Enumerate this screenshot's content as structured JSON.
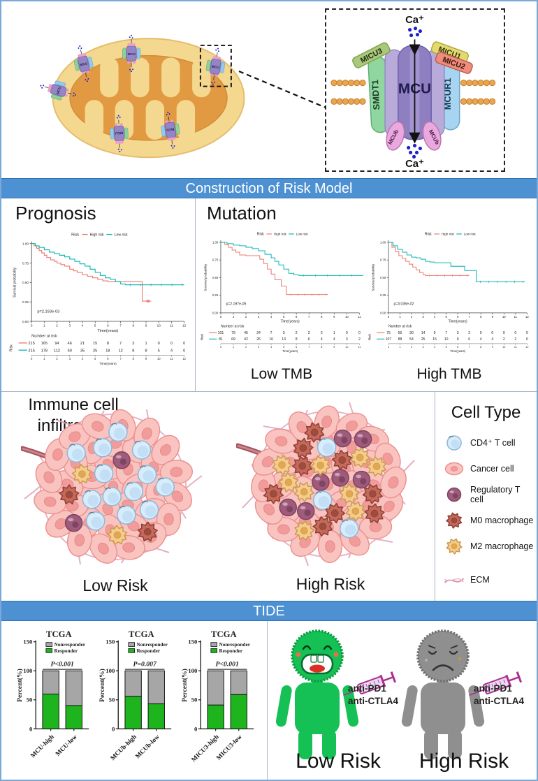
{
  "colors": {
    "banner_blue": "#4d91d3",
    "km_high_risk": "#ee7b6f",
    "km_low_risk": "#10b5b5",
    "responder_green": "#1db41d",
    "nonresponder_gray": "#a6a6a6",
    "person_green": "#15c055",
    "person_green_dark": "#0a9a40",
    "person_gray": "#8f8f8f",
    "person_gray_dark": "#6e6e6e",
    "syringe_magenta": "#ad2f8f"
  },
  "mcu_diagram": {
    "ca_top": "Ca⁺",
    "ca_bottom": "Ca⁺",
    "mcu": "MCU",
    "smdt1": "SMDT1",
    "mcur1": "MCUR1",
    "micu1": "MICU1",
    "micu2": "MICU2",
    "micu3": "MICU3",
    "mcub": "MCUb",
    "mini_label": "MCU"
  },
  "banners": {
    "risk_model": "Construction of Risk Model",
    "tide": "TIDE"
  },
  "risk_model": {
    "prognosis_title": "Prognosis",
    "mutation_title": "Mutation",
    "low_tmb_label": "Low TMB",
    "high_tmb_label": "High TMB"
  },
  "immune": {
    "title": "Immune cell infiltration",
    "low_risk_label": "Low Risk",
    "high_risk_label": "High Risk",
    "cell_type": {
      "title": "Cell Type",
      "items": [
        {
          "icon": "cd4-t-cell",
          "label": "CD4⁺ T cell"
        },
        {
          "icon": "cancer-cell",
          "label": "Cancer cell"
        },
        {
          "icon": "regulatory-t-cell",
          "label": "Regulatory T cell"
        },
        {
          "icon": "m0-macrophage",
          "label": "M0 macrophage"
        },
        {
          "icon": "m2-macrophage",
          "label": "M2 macrophage"
        },
        {
          "icon": "ecm",
          "label": "ECM"
        }
      ]
    },
    "composition": {
      "low_risk": {
        "cancer": 36,
        "cd4": 13,
        "treg": 2,
        "m0": 2,
        "m2": 2
      },
      "high_risk": {
        "cancer": 36,
        "cd4": 3,
        "treg": 7,
        "m0": 9,
        "m2": 9
      }
    }
  },
  "tide": {
    "low_risk_label": "Low Risk",
    "high_risk_label": "High Risk",
    "antibodies": [
      "anti-PD1",
      "anti-CTLA4"
    ]
  },
  "chart_data": [
    {
      "id": "km-prognosis",
      "type": "line",
      "subtype": "kaplan-meier",
      "legend_title": "Risk",
      "legend": [
        "High risk",
        "Low risk"
      ],
      "colors": [
        "#ee7b6f",
        "#10b5b5"
      ],
      "ylabel": "Survival probability",
      "xlabel": "Time(years)",
      "yticks": [
        "1.00",
        "0.75",
        "0.50",
        "0.25",
        "0.00"
      ],
      "xlim": [
        0,
        12
      ],
      "ylim": [
        0,
        1
      ],
      "p_value": "p=2.193e-03",
      "series": [
        {
          "name": "High risk",
          "steps": [
            [
              0,
              1.0
            ],
            [
              0.2,
              0.97
            ],
            [
              0.4,
              0.94
            ],
            [
              0.6,
              0.91
            ],
            [
              0.8,
              0.88
            ],
            [
              1.0,
              0.85
            ],
            [
              1.2,
              0.82
            ],
            [
              1.5,
              0.79
            ],
            [
              1.8,
              0.77
            ],
            [
              2.0,
              0.75
            ],
            [
              2.3,
              0.73
            ],
            [
              2.6,
              0.71
            ],
            [
              3.0,
              0.67
            ],
            [
              3.3,
              0.65
            ],
            [
              3.6,
              0.63
            ],
            [
              4.0,
              0.6
            ],
            [
              4.4,
              0.58
            ],
            [
              4.8,
              0.56
            ],
            [
              5.2,
              0.54
            ],
            [
              5.6,
              0.52
            ],
            [
              6.0,
              0.51
            ],
            [
              8.6,
              0.51
            ],
            [
              8.7,
              0.26
            ],
            [
              9.4,
              0.26
            ]
          ]
        },
        {
          "name": "Low risk",
          "steps": [
            [
              0,
              1.0
            ],
            [
              0.3,
              0.97
            ],
            [
              0.6,
              0.95
            ],
            [
              1.0,
              0.92
            ],
            [
              1.4,
              0.89
            ],
            [
              1.8,
              0.87
            ],
            [
              2.2,
              0.85
            ],
            [
              2.6,
              0.83
            ],
            [
              3.0,
              0.8
            ],
            [
              3.4,
              0.77
            ],
            [
              3.8,
              0.74
            ],
            [
              4.2,
              0.71
            ],
            [
              4.6,
              0.67
            ],
            [
              5.0,
              0.63
            ],
            [
              5.4,
              0.59
            ],
            [
              5.8,
              0.56
            ],
            [
              6.2,
              0.54
            ],
            [
              6.6,
              0.51
            ],
            [
              7.0,
              0.48
            ],
            [
              7.4,
              0.47
            ],
            [
              12.0,
              0.47
            ]
          ]
        }
      ],
      "number_at_risk": {
        "title": "Number at risk",
        "axis_label": "Risk",
        "time_label": "Time(years)",
        "times": [
          0,
          1,
          2,
          3,
          4,
          5,
          6,
          7,
          8,
          9,
          10,
          11,
          12
        ],
        "rows": [
          {
            "name": "High risk",
            "values": [
              215,
              165,
              94,
              46,
              21,
              15,
              8,
              7,
              3,
              1,
              0,
              0,
              0
            ]
          },
          {
            "name": "Low risk",
            "values": [
              215,
              178,
              112,
              60,
              35,
              25,
              18,
              12,
              8,
              8,
              5,
              4,
              0
            ]
          }
        ]
      }
    },
    {
      "id": "km-low-tmb",
      "type": "line",
      "subtype": "kaplan-meier",
      "legend_title": "Risk",
      "legend": [
        "High risk",
        "Low risk"
      ],
      "colors": [
        "#ee7b6f",
        "#10b5b5"
      ],
      "ylabel": "Survival probability",
      "xlabel": "Time(years)",
      "yticks": [
        "1.00",
        "0.75",
        "0.50",
        "0.25",
        "0.00"
      ],
      "xlim": [
        0,
        11
      ],
      "ylim": [
        0,
        1
      ],
      "p_value": "p=2.197e-05",
      "series": [
        {
          "name": "High risk",
          "steps": [
            [
              0,
              1.0
            ],
            [
              0.3,
              0.97
            ],
            [
              0.6,
              0.93
            ],
            [
              0.9,
              0.89
            ],
            [
              1.2,
              0.86
            ],
            [
              1.5,
              0.82
            ],
            [
              2.0,
              0.81
            ],
            [
              2.8,
              0.81
            ],
            [
              3.1,
              0.76
            ],
            [
              3.4,
              0.7
            ],
            [
              3.7,
              0.62
            ],
            [
              4.0,
              0.55
            ],
            [
              4.3,
              0.47
            ],
            [
              4.8,
              0.38
            ],
            [
              5.2,
              0.26
            ],
            [
              8.5,
              0.26
            ]
          ]
        },
        {
          "name": "Low risk",
          "steps": [
            [
              0,
              1.0
            ],
            [
              0.5,
              0.98
            ],
            [
              1.0,
              0.96
            ],
            [
              1.5,
              0.95
            ],
            [
              2.0,
              0.93
            ],
            [
              2.5,
              0.91
            ],
            [
              3.0,
              0.88
            ],
            [
              3.5,
              0.83
            ],
            [
              4.0,
              0.78
            ],
            [
              4.3,
              0.73
            ],
            [
              4.6,
              0.68
            ],
            [
              5.0,
              0.62
            ],
            [
              5.4,
              0.56
            ],
            [
              5.8,
              0.54
            ],
            [
              6.2,
              0.53
            ],
            [
              11.5,
              0.53
            ]
          ]
        }
      ],
      "number_at_risk": {
        "title": "Number at risk",
        "axis_label": "Risk",
        "time_label": "Time(years)",
        "times": [
          0,
          1,
          2,
          3,
          4,
          5,
          6,
          7,
          8,
          9,
          10,
          11
        ],
        "rows": [
          {
            "name": "High risk",
            "values": [
              101,
              79,
              45,
              24,
              7,
              3,
              2,
              2,
              2,
              1,
              0,
              0
            ]
          },
          {
            "name": "Low risk",
            "values": [
              81,
              69,
              42,
              26,
              16,
              13,
              8,
              6,
              4,
              4,
              3,
              2
            ]
          }
        ]
      }
    },
    {
      "id": "km-high-tmb",
      "type": "line",
      "subtype": "kaplan-meier",
      "legend_title": "Risk",
      "legend": [
        "High risk",
        "Low risk"
      ],
      "colors": [
        "#ee7b6f",
        "#10b5b5"
      ],
      "ylabel": "Survival probability",
      "xlabel": "Time(years)",
      "yticks": [
        "1.00",
        "0.75",
        "0.50",
        "0.25",
        "0.00"
      ],
      "xlim": [
        0,
        12
      ],
      "ylim": [
        0,
        1
      ],
      "p_value": "p=3.036e-02",
      "series": [
        {
          "name": "High risk",
          "steps": [
            [
              0,
              1.0
            ],
            [
              0.3,
              0.93
            ],
            [
              0.6,
              0.87
            ],
            [
              0.9,
              0.81
            ],
            [
              1.2,
              0.77
            ],
            [
              1.5,
              0.73
            ],
            [
              1.8,
              0.69
            ],
            [
              2.1,
              0.65
            ],
            [
              2.4,
              0.61
            ],
            [
              2.7,
              0.57
            ],
            [
              3.0,
              0.54
            ],
            [
              3.2,
              0.53
            ],
            [
              7.0,
              0.53
            ]
          ]
        },
        {
          "name": "Low risk",
          "steps": [
            [
              0,
              1.0
            ],
            [
              0.4,
              0.95
            ],
            [
              0.8,
              0.9
            ],
            [
              1.2,
              0.86
            ],
            [
              1.6,
              0.82
            ],
            [
              2.0,
              0.79
            ],
            [
              2.4,
              0.78
            ],
            [
              2.8,
              0.76
            ],
            [
              3.2,
              0.73
            ],
            [
              3.6,
              0.72
            ],
            [
              4.0,
              0.71
            ],
            [
              5.2,
              0.71
            ],
            [
              5.4,
              0.66
            ],
            [
              6.2,
              0.66
            ],
            [
              6.6,
              0.6
            ],
            [
              7.4,
              0.6
            ],
            [
              7.6,
              0.44
            ],
            [
              11.8,
              0.44
            ]
          ]
        }
      ],
      "number_at_risk": {
        "title": "Number at risk",
        "axis_label": "Risk",
        "time_label": "Time(years)",
        "times": [
          0,
          1,
          2,
          3,
          4,
          5,
          6,
          7,
          8,
          9,
          10,
          11,
          12
        ],
        "rows": [
          {
            "name": "High risk",
            "values": [
              75,
              55,
              30,
              14,
              9,
              7,
              3,
              2,
              0,
              0,
              0,
              0,
              0
            ]
          },
          {
            "name": "Low risk",
            "values": [
              107,
              88,
              54,
              25,
              15,
              10,
              9,
              6,
              4,
              4,
              2,
              2,
              0
            ]
          }
        ]
      }
    },
    {
      "id": "tide-mcu",
      "type": "bar",
      "stacked": true,
      "title": "TCGA",
      "ylabel": "Percent(%)",
      "yticks": [
        0,
        50,
        100,
        150
      ],
      "ylim": [
        0,
        150
      ],
      "p_value": "P<0.001",
      "legend": [
        {
          "name": "Nonresponder",
          "color": "#a6a6a6"
        },
        {
          "name": "Responder",
          "color": "#1db41d"
        }
      ],
      "categories": [
        "MCU-high",
        "MCU-low"
      ],
      "series": [
        {
          "name": "Responder",
          "values": [
            60,
            40
          ]
        },
        {
          "name": "Nonresponder",
          "values": [
            40,
            60
          ]
        }
      ]
    },
    {
      "id": "tide-mcub",
      "type": "bar",
      "stacked": true,
      "title": "TCGA",
      "ylabel": "Percent(%)",
      "yticks": [
        0,
        50,
        100,
        150
      ],
      "ylim": [
        0,
        150
      ],
      "p_value": "P=0.007",
      "legend": [
        {
          "name": "Nonresponder",
          "color": "#a6a6a6"
        },
        {
          "name": "Responder",
          "color": "#1db41d"
        }
      ],
      "categories": [
        "MCUb-high",
        "MCUb-low"
      ],
      "series": [
        {
          "name": "Responder",
          "values": [
            56,
            43
          ]
        },
        {
          "name": "Nonresponder",
          "values": [
            44,
            57
          ]
        }
      ]
    },
    {
      "id": "tide-micu3",
      "type": "bar",
      "stacked": true,
      "title": "TCGA",
      "ylabel": "Percent(%)",
      "yticks": [
        0,
        50,
        100,
        150
      ],
      "ylim": [
        0,
        150
      ],
      "p_value": "P<0.001",
      "legend": [
        {
          "name": "Nonresponder",
          "color": "#a6a6a6"
        },
        {
          "name": "Responder",
          "color": "#1db41d"
        }
      ],
      "categories": [
        "MICU3-high",
        "MICU3-low"
      ],
      "series": [
        {
          "name": "Responder",
          "values": [
            41,
            59
          ]
        },
        {
          "name": "Nonresponder",
          "values": [
            59,
            41
          ]
        }
      ]
    }
  ]
}
